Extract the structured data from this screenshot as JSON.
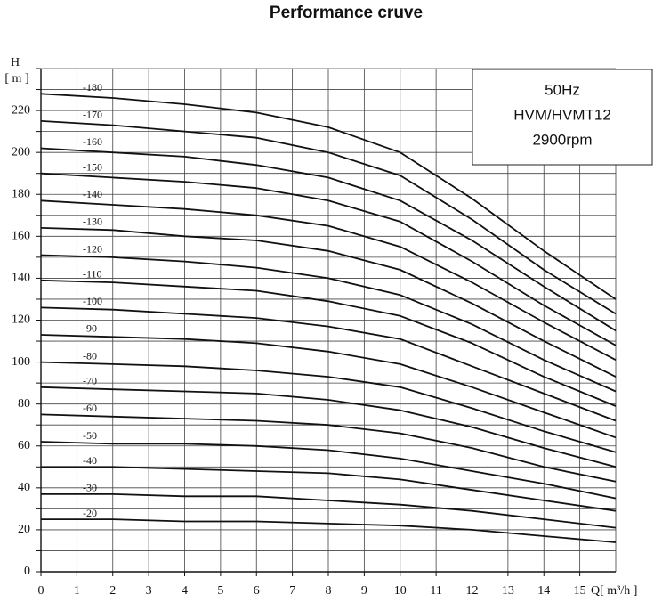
{
  "chart_data": {
    "type": "line",
    "title": "Performance cruve",
    "y_label": "H",
    "y_unit": "[ m ]",
    "x_label": "Q[ m³/h ]",
    "annotations": [
      "50Hz",
      "HVM/HVMT12",
      "2900rpm"
    ],
    "xlim": [
      0,
      16
    ],
    "ylim": [
      0,
      240
    ],
    "xticks": [
      0,
      1,
      2,
      3,
      4,
      5,
      6,
      7,
      8,
      9,
      10,
      11,
      12,
      13,
      14,
      15
    ],
    "yticks": [
      0,
      20,
      40,
      60,
      80,
      100,
      120,
      140,
      160,
      180,
      200,
      220
    ],
    "xgrid": [
      0,
      1,
      2,
      3,
      4,
      5,
      6,
      7,
      8,
      9,
      10,
      11,
      12,
      13,
      14,
      15,
      16
    ],
    "ygrid": [
      0,
      10,
      20,
      30,
      40,
      50,
      60,
      70,
      80,
      90,
      100,
      110,
      120,
      130,
      140,
      150,
      160,
      170,
      180,
      190,
      200,
      210,
      220,
      230,
      240
    ],
    "grid": true,
    "x": [
      0,
      2,
      4,
      6,
      8,
      10,
      12,
      14,
      16
    ],
    "series": [
      {
        "name": "-180",
        "color": "#111111",
        "values": [
          228,
          226,
          223,
          219,
          212,
          200,
          178,
          153,
          130
        ]
      },
      {
        "name": "-170",
        "color": "#111111",
        "values": [
          215,
          213,
          210,
          207,
          200,
          189,
          168,
          144,
          123
        ]
      },
      {
        "name": "-160",
        "color": "#111111",
        "values": [
          202,
          200,
          198,
          194,
          188,
          177,
          158,
          136,
          115
        ]
      },
      {
        "name": "-150",
        "color": "#111111",
        "values": [
          190,
          188,
          186,
          183,
          177,
          167,
          148,
          127,
          108
        ]
      },
      {
        "name": "-140",
        "color": "#111111",
        "values": [
          177,
          175,
          173,
          170,
          165,
          155,
          138,
          119,
          101
        ]
      },
      {
        "name": "-130",
        "color": "#111111",
        "values": [
          164,
          163,
          160,
          158,
          153,
          144,
          128,
          110,
          93
        ]
      },
      {
        "name": "-120",
        "color": "#111111",
        "values": [
          151,
          150,
          148,
          145,
          140,
          132,
          118,
          101,
          86
        ]
      },
      {
        "name": "-110",
        "color": "#111111",
        "values": [
          139,
          138,
          136,
          134,
          129,
          122,
          109,
          93,
          79
        ]
      },
      {
        "name": "-100",
        "color": "#111111",
        "values": [
          126,
          125,
          123,
          121,
          117,
          111,
          98,
          85,
          72
        ]
      },
      {
        "name": "-90",
        "color": "#111111",
        "values": [
          113,
          112,
          111,
          109,
          105,
          99,
          88,
          76,
          64
        ]
      },
      {
        "name": "-80",
        "color": "#111111",
        "values": [
          100,
          99,
          98,
          96,
          93,
          88,
          78,
          67,
          57
        ]
      },
      {
        "name": "-70",
        "color": "#111111",
        "values": [
          88,
          87,
          86,
          85,
          82,
          77,
          69,
          59,
          50
        ]
      },
      {
        "name": "-60",
        "color": "#111111",
        "values": [
          75,
          74,
          73,
          72,
          70,
          66,
          59,
          50,
          43
        ]
      },
      {
        "name": "-50",
        "color": "#111111",
        "values": [
          62,
          61,
          61,
          60,
          58,
          54,
          48,
          42,
          35
        ]
      },
      {
        "name": "-40",
        "color": "#111111",
        "values": [
          50,
          50,
          49,
          48,
          47,
          44,
          39,
          34,
          29
        ]
      },
      {
        "name": "-30",
        "color": "#111111",
        "values": [
          37,
          37,
          36,
          36,
          34,
          32,
          29,
          25,
          21
        ]
      },
      {
        "name": "-20",
        "color": "#111111",
        "values": [
          25,
          25,
          24,
          24,
          23,
          22,
          20,
          17,
          14
        ]
      }
    ]
  }
}
